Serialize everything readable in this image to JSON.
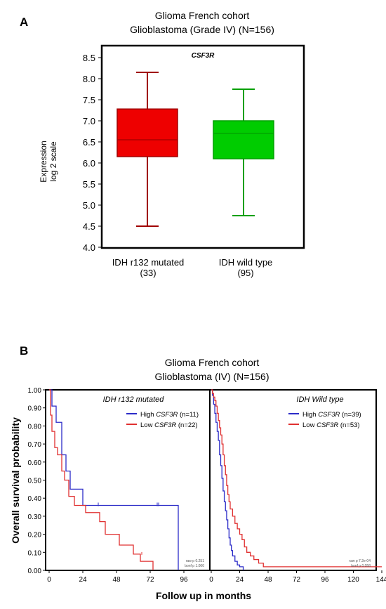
{
  "panel_a": {
    "letter": "A",
    "title_line1": "Glioma French cohort",
    "title_line2": "Glioblastoma  (Grade IV) (N=156)",
    "ylabel_line1": "Expression",
    "ylabel_line2": "log 2 scale"
  },
  "panel_b": {
    "letter": "B",
    "title_line1": "Glioma French cohort",
    "title_line2": "Glioblastoma (IV) (N=156)",
    "ylabel": "Overall survival probability",
    "xlabel": "Follow up in months"
  },
  "chart_data": [
    {
      "type": "box",
      "title": "CSF3R",
      "ylim": [
        4.0,
        8.5
      ],
      "yticks": [
        "4.0",
        "4.5",
        "5.0",
        "5.5",
        "6.0",
        "6.5",
        "7.0",
        "7.5",
        "8.0",
        "8.5"
      ],
      "groups": [
        {
          "name": "IDH r132 mutated",
          "n": "(33)",
          "min": 4.5,
          "q1": 6.15,
          "median": 6.55,
          "q3": 7.28,
          "max": 8.15,
          "color": "#ee0000",
          "line_color": "#a00000"
        },
        {
          "name": "IDH wild type",
          "n": "(95)",
          "min": 4.75,
          "q1": 6.1,
          "median": 6.7,
          "q3": 7.0,
          "max": 7.75,
          "color": "#00cc00",
          "line_color": "#00a000"
        }
      ]
    },
    {
      "type": "line",
      "subtype": "kaplan-meier",
      "title": "IDH r132 mutated",
      "xlim": [
        0,
        100
      ],
      "ylim": [
        0,
        1
      ],
      "xticks": [
        "0",
        "24",
        "48",
        "72",
        "96"
      ],
      "yticks": [
        "0.00",
        "0.10",
        "0.20",
        "0.30",
        "0.40",
        "0.50",
        "0.60",
        "0.70",
        "0.80",
        "0.90",
        "1.00"
      ],
      "stats_line1": "raw p 0.251",
      "stats_line2": "bonf p 1.000",
      "series": [
        {
          "name": "High CSF3R (n=11)",
          "label_pre": "High ",
          "label_gene": "CSF3R",
          "label_post": " (n=11)",
          "color": "#2b2bc8",
          "x": [
            0,
            2,
            5,
            9,
            12,
            15,
            24,
            35,
            78,
            92
          ],
          "y": [
            1.0,
            0.91,
            0.82,
            0.64,
            0.55,
            0.45,
            0.36,
            0.36,
            0.36,
            0.0
          ]
        },
        {
          "name": "Low CSF3R (n=22)",
          "label_pre": "Low ",
          "label_gene": "CSF3R",
          "label_post": " (n=22)",
          "color": "#e03030",
          "x": [
            0,
            1,
            2,
            4,
            6,
            9,
            11,
            14,
            18,
            22,
            26,
            36,
            40,
            46,
            50,
            60,
            65,
            74
          ],
          "y": [
            1.0,
            0.86,
            0.77,
            0.68,
            0.64,
            0.55,
            0.5,
            0.41,
            0.36,
            0.36,
            0.32,
            0.27,
            0.2,
            0.2,
            0.14,
            0.09,
            0.05,
            0.0
          ]
        }
      ]
    },
    {
      "type": "line",
      "subtype": "kaplan-meier",
      "title": "IDH Wild type",
      "xlim": [
        0,
        150
      ],
      "ylim": [
        0,
        1
      ],
      "xticks": [
        "0",
        "24",
        "48",
        "72",
        "96",
        "120",
        "144"
      ],
      "stats_line1": "raw p 7.2e-04",
      "stats_line2": "bonf p 0.058",
      "series": [
        {
          "name": "High CSF3R (n=39)",
          "label_pre": "High ",
          "label_gene": "CSF3R",
          "label_post": " (n=39)",
          "color": "#2b2bc8",
          "x": [
            0,
            1,
            2,
            3,
            4,
            5,
            6,
            7,
            8,
            9,
            10,
            11,
            12,
            13,
            14,
            15,
            16,
            17,
            18,
            20,
            22,
            24,
            27
          ],
          "y": [
            1.0,
            0.97,
            0.92,
            0.87,
            0.82,
            0.77,
            0.72,
            0.64,
            0.58,
            0.51,
            0.44,
            0.38,
            0.33,
            0.28,
            0.23,
            0.18,
            0.14,
            0.11,
            0.08,
            0.05,
            0.03,
            0.02,
            0.0
          ]
        },
        {
          "name": "Low CSF3R (n=53)",
          "label_pre": "Low ",
          "label_gene": "CSF3R",
          "label_post": " (n=53)",
          "color": "#e03030",
          "x": [
            0,
            1,
            2,
            3,
            4,
            5,
            6,
            7,
            8,
            9,
            10,
            11,
            12,
            13,
            14,
            15,
            16,
            18,
            20,
            22,
            24,
            26,
            28,
            30,
            33,
            36,
            40,
            44,
            60,
            96,
            144
          ],
          "y": [
            1.0,
            0.98,
            0.96,
            0.94,
            0.91,
            0.87,
            0.83,
            0.79,
            0.75,
            0.7,
            0.64,
            0.58,
            0.53,
            0.47,
            0.42,
            0.38,
            0.34,
            0.3,
            0.26,
            0.23,
            0.2,
            0.17,
            0.13,
            0.1,
            0.08,
            0.06,
            0.04,
            0.02,
            0.02,
            0.02,
            0.02
          ]
        }
      ]
    }
  ]
}
